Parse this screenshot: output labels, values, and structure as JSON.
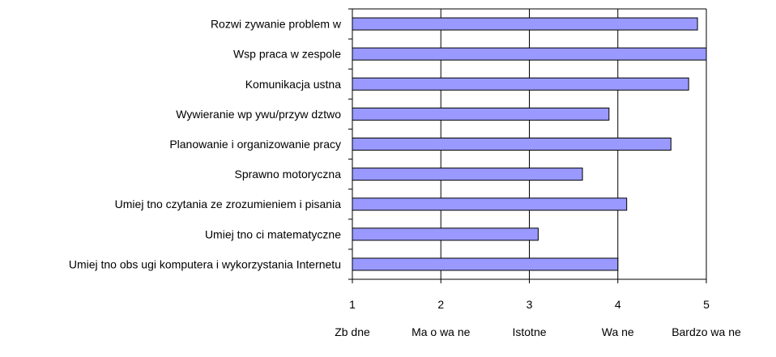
{
  "chart_data": {
    "type": "bar",
    "orientation": "horizontal",
    "title": "",
    "xlabel": "",
    "ylabel": "",
    "categories": [
      "Rozwi zywanie problem w",
      "Wsp praca w zespole",
      "Komunikacja ustna",
      "Wywieranie wp ywu/przyw dztwo",
      "Planowanie i organizowanie pracy",
      "Sprawno motoryczna",
      "Umiej tno czytania ze zrozumieniem i pisania",
      "Umiej tno ci matematyczne",
      "Umiej tno obs ugi komputera i wykorzystania Internetu"
    ],
    "values": [
      4.9,
      5.0,
      4.8,
      3.9,
      4.6,
      3.6,
      4.1,
      3.1,
      4.0
    ],
    "xlim": [
      1,
      5
    ],
    "xticks": [
      "1",
      "2",
      "3",
      "4",
      "5"
    ],
    "scale_labels": [
      "Zb dne",
      "Ma o wa ne",
      "Istotne",
      "Wa ne",
      "Bardzo wa ne"
    ],
    "grid": true,
    "bar_color": "#9999ff",
    "bar_edge_color": "#000000"
  }
}
